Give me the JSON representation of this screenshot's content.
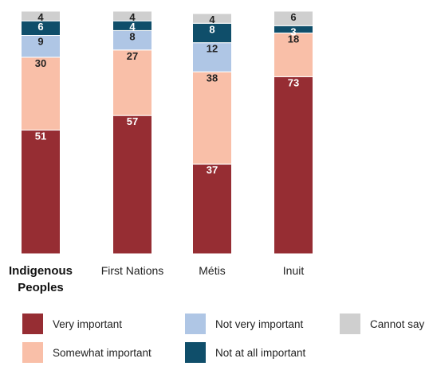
{
  "chart_data": {
    "type": "bar",
    "stacked": true,
    "categories": [
      "Indigenous Peoples",
      "First Nations",
      "Métis",
      "Inuit"
    ],
    "category_display": [
      [
        "Indigenous",
        "Peoples"
      ],
      [
        "First Nations"
      ],
      [
        "Métis"
      ],
      [
        "Inuit"
      ]
    ],
    "series": [
      {
        "name": "Very important",
        "color": "#962D33",
        "label_color": "#ffffff",
        "values": [
          51,
          57,
          37,
          73
        ]
      },
      {
        "name": "Somewhat important",
        "color": "#F9BFA8",
        "label_color": "#222222",
        "values": [
          30,
          27,
          38,
          18
        ]
      },
      {
        "name": "Not very important",
        "color": "#AFC6E5",
        "label_color": "#222222",
        "values": [
          9,
          8,
          12,
          0
        ]
      },
      {
        "name": "Not at all important",
        "color": "#0F4E6A",
        "label_color": "#ffffff",
        "values": [
          6,
          4,
          8,
          3
        ]
      },
      {
        "name": "Cannot say",
        "color": "#CFCFCF",
        "label_color": "#222222",
        "values": [
          4,
          4,
          4,
          6
        ]
      }
    ],
    "ylim": [
      0,
      100
    ],
    "grid": false,
    "legend_position": "bottom"
  },
  "legend_rows": [
    [
      "Very important",
      "Not very important",
      "Cannot say"
    ],
    [
      "Somewhat important",
      "Not at all important"
    ]
  ]
}
